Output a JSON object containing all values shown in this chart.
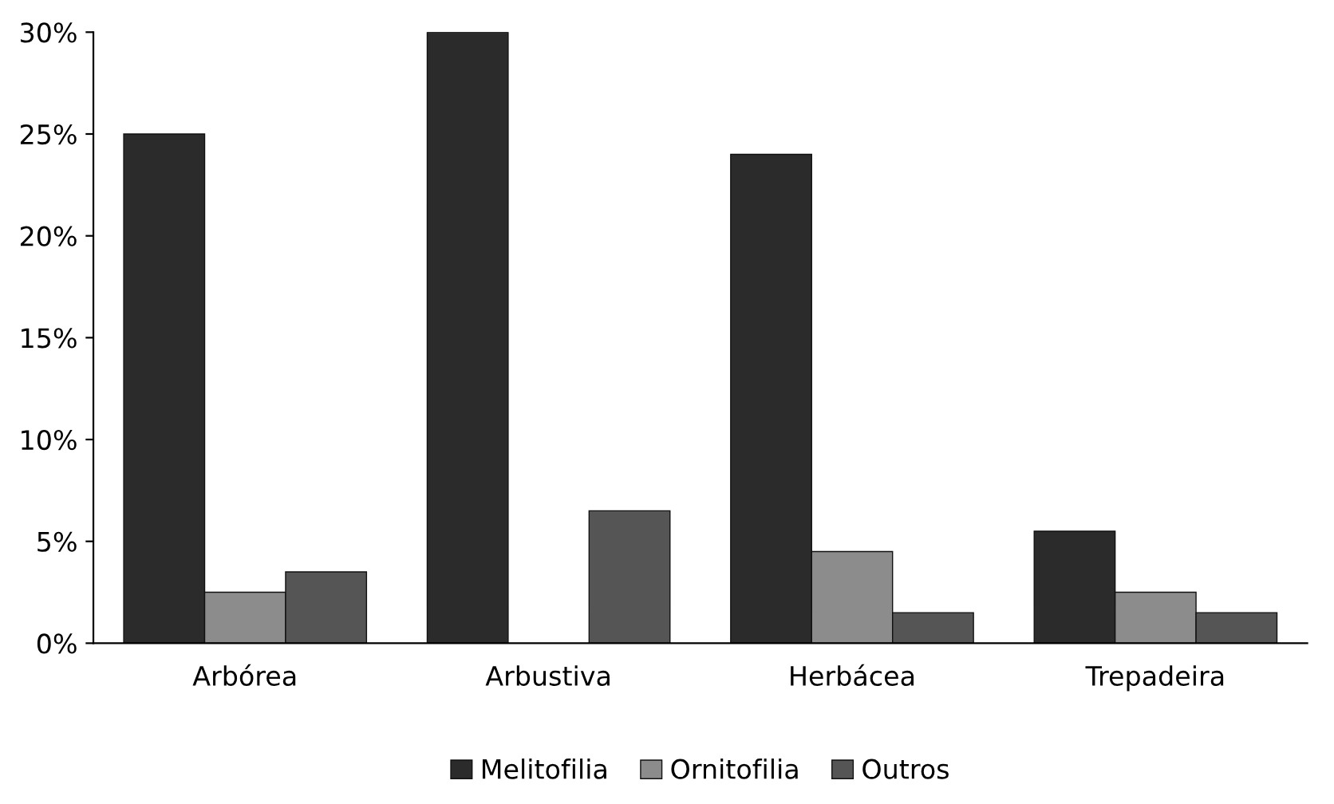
{
  "chart_data": {
    "type": "bar",
    "categories": [
      "Arbórea",
      "Arbustiva",
      "Herbácea",
      "Trepadeira"
    ],
    "series": [
      {
        "name": "Melitofilia",
        "color": "#2b2b2b",
        "values": [
          25,
          30,
          24,
          5.5
        ]
      },
      {
        "name": "Ornitofilia",
        "color": "#8c8c8c",
        "values": [
          2.5,
          null,
          4.5,
          2.5
        ]
      },
      {
        "name": "Outros",
        "color": "#555555",
        "values": [
          3.5,
          6.5,
          1.5,
          1.5
        ]
      }
    ],
    "ylim": [
      0,
      30
    ],
    "yticks": [
      {
        "value": 0,
        "label": "0%"
      },
      {
        "value": 5,
        "label": "5%"
      },
      {
        "value": 10,
        "label": "10%"
      },
      {
        "value": 15,
        "label": "15%"
      },
      {
        "value": 20,
        "label": "20%"
      },
      {
        "value": 25,
        "label": "25%"
      },
      {
        "value": 30,
        "label": "30%"
      }
    ],
    "grid": false,
    "legend": "bottom"
  }
}
